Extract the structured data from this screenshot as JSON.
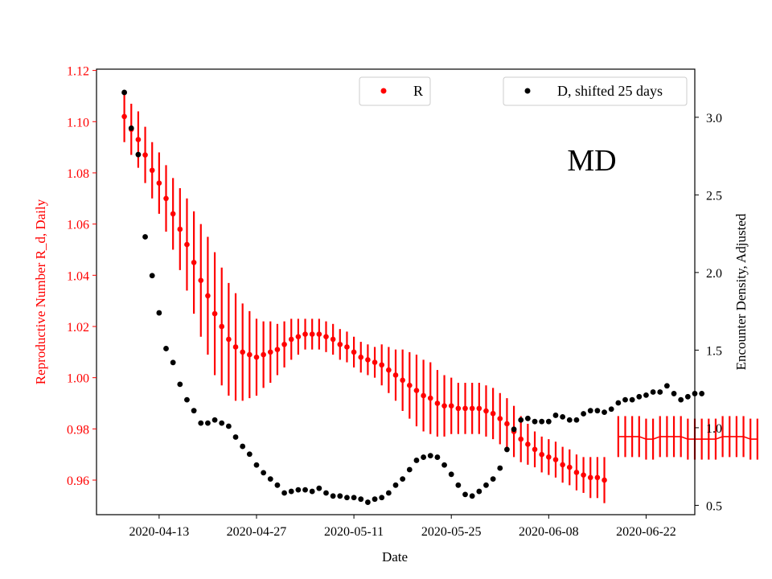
{
  "chart_data": {
    "type": "scatter",
    "state_label": "MD",
    "xlabel": "Date",
    "ylabel_left": "Reproductive Number R_d, Daily",
    "ylabel_right": "Encounter Density, Adjusted",
    "x_ticks": [
      "2020-04-13",
      "2020-04-27",
      "2020-05-11",
      "2020-05-25",
      "2020-06-08",
      "2020-06-22"
    ],
    "y_left_ticks": [
      "0.96",
      "0.98",
      "1.00",
      "1.02",
      "1.04",
      "1.06",
      "1.08",
      "1.10",
      "1.12"
    ],
    "y_right_ticks": [
      "0.5",
      "1.0",
      "1.5",
      "2.0",
      "2.5",
      "3.0"
    ],
    "ylim_left": [
      0.9465,
      1.1205
    ],
    "ylim_right": [
      0.44,
      3.31
    ],
    "x_start": "2020-04-04",
    "x_end": "2020-06-29",
    "legend_R": "R",
    "legend_D": "D, shifted 25 days",
    "colors": {
      "R": "#ff0000",
      "D": "#000000",
      "left_axis": "#ff0000",
      "right_axis": "#000000"
    },
    "series_R": {
      "name": "R",
      "x_start": "2020-04-08",
      "values": [
        1.102,
        1.097,
        1.093,
        1.087,
        1.081,
        1.076,
        1.07,
        1.064,
        1.058,
        1.052,
        1.045,
        1.038,
        1.032,
        1.025,
        1.02,
        1.015,
        1.012,
        1.01,
        1.009,
        1.008,
        1.009,
        1.01,
        1.011,
        1.013,
        1.015,
        1.016,
        1.017,
        1.017,
        1.017,
        1.016,
        1.015,
        1.013,
        1.012,
        1.01,
        1.008,
        1.007,
        1.006,
        1.005,
        1.003,
        1.001,
        0.999,
        0.997,
        0.995,
        0.993,
        0.992,
        0.99,
        0.989,
        0.989,
        0.988,
        0.988,
        0.988,
        0.988,
        0.987,
        0.986,
        0.984,
        0.982,
        0.979,
        0.976,
        0.974,
        0.972,
        0.97,
        0.969,
        0.968,
        0.966,
        0.965,
        0.963,
        0.962,
        0.961,
        0.961,
        0.96
      ],
      "err": [
        0.01,
        0.01,
        0.011,
        0.011,
        0.011,
        0.012,
        0.013,
        0.014,
        0.016,
        0.018,
        0.02,
        0.022,
        0.023,
        0.024,
        0.023,
        0.022,
        0.021,
        0.019,
        0.017,
        0.015,
        0.013,
        0.012,
        0.01,
        0.009,
        0.008,
        0.007,
        0.006,
        0.006,
        0.006,
        0.006,
        0.006,
        0.006,
        0.006,
        0.006,
        0.006,
        0.006,
        0.006,
        0.008,
        0.009,
        0.01,
        0.012,
        0.013,
        0.014,
        0.014,
        0.014,
        0.013,
        0.012,
        0.011,
        0.01,
        0.01,
        0.01,
        0.01,
        0.01,
        0.01,
        0.01,
        0.01,
        0.01,
        0.009,
        0.008,
        0.007,
        0.007,
        0.007,
        0.007,
        0.007,
        0.007,
        0.007,
        0.007,
        0.008,
        0.008,
        0.009
      ]
    },
    "series_R_tail": {
      "x_start": "2020-06-18",
      "values": [
        0.977,
        0.977,
        0.977,
        0.977,
        0.976,
        0.976,
        0.977,
        0.977,
        0.977,
        0.977,
        0.976,
        0.976,
        0.976,
        0.976,
        0.976,
        0.977,
        0.977,
        0.977,
        0.977,
        0.976,
        0.976
      ],
      "err": 0.008
    },
    "series_D": {
      "name": "D, shifted 25 days",
      "x_start": "2020-04-08",
      "values": [
        3.16,
        2.93,
        2.76,
        2.23,
        1.98,
        1.74,
        1.51,
        1.42,
        1.28,
        1.18,
        1.11,
        1.03,
        1.03,
        1.05,
        1.03,
        1.01,
        0.94,
        0.88,
        0.83,
        0.76,
        0.71,
        0.67,
        0.63,
        0.58,
        0.59,
        0.6,
        0.6,
        0.59,
        0.61,
        0.58,
        0.56,
        0.56,
        0.55,
        0.55,
        0.54,
        0.52,
        0.54,
        0.55,
        0.58,
        0.63,
        0.67,
        0.73,
        0.79,
        0.81,
        0.82,
        0.81,
        0.76,
        0.7,
        0.63,
        0.57,
        0.56,
        0.59,
        0.63,
        0.67,
        0.74,
        0.86,
        0.99,
        1.05,
        1.06,
        1.04,
        1.04,
        1.04,
        1.08,
        1.07,
        1.05,
        1.05,
        1.09,
        1.11,
        1.11,
        1.1,
        1.12,
        1.16,
        1.18,
        1.18,
        1.2,
        1.21,
        1.23,
        1.23,
        1.27,
        1.22,
        1.18,
        1.2,
        1.22,
        1.22
      ]
    }
  }
}
